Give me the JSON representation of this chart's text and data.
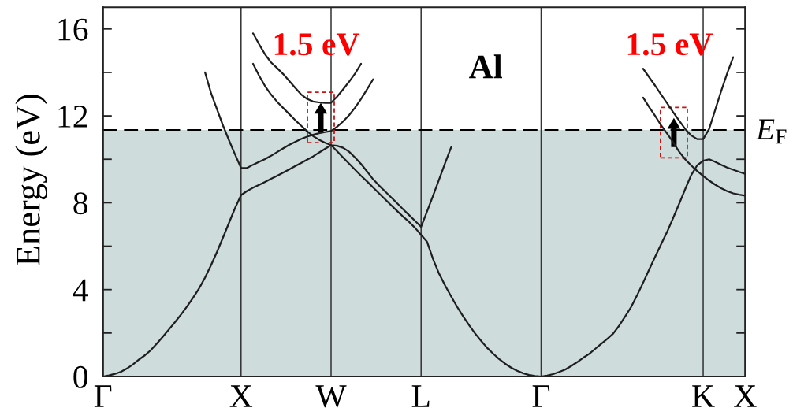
{
  "chart_data": {
    "type": "line",
    "title": "Al",
    "ylabel": "Energy (eV)",
    "categories": [
      "Γ",
      null,
      null,
      null,
      null,
      null,
      null,
      null,
      null,
      null,
      null,
      null,
      null,
      null,
      null,
      null,
      null,
      null,
      null,
      null,
      null,
      null,
      null,
      "X",
      null,
      null,
      null,
      null,
      null,
      null,
      null,
      null,
      null,
      null,
      null,
      null,
      null,
      null,
      "W",
      null,
      null,
      null,
      null,
      null,
      null,
      null,
      null,
      null,
      null,
      null,
      null,
      null,
      null,
      "L",
      null,
      null,
      null,
      null,
      null,
      null,
      null,
      null,
      null,
      null,
      null,
      null,
      null,
      null,
      null,
      null,
      null,
      null,
      null,
      "Γ",
      null,
      null,
      null,
      null,
      null,
      null,
      null,
      null,
      null,
      null,
      null,
      null,
      null,
      null,
      null,
      null,
      null,
      null,
      null,
      null,
      null,
      null,
      null,
      null,
      null,
      null,
      "K",
      null,
      null,
      null,
      null,
      null,
      null,
      "X"
    ],
    "ylim": [
      0,
      17
    ],
    "yticks": [
      0,
      {
        "value": 2,
        "label": null
      },
      4,
      {
        "value": 6,
        "label": null
      },
      8,
      {
        "value": 10,
        "label": null
      },
      12,
      {
        "value": 14,
        "label": null
      },
      16
    ],
    "grid": "x",
    "series": [
      {
        "color": "#1e1e1e",
        "values": [
          0,
          0.05,
          0.12,
          0.22,
          0.37,
          0.56,
          0.78,
          0.98,
          1.22,
          1.52,
          1.84,
          2.17,
          2.5,
          2.85,
          3.22,
          3.62,
          4.05,
          4.55,
          5.12,
          5.74,
          6.4,
          7.08,
          7.75,
          8.35,
          8.54,
          8.69,
          8.82,
          8.96,
          9.1,
          9.24,
          9.38,
          9.53,
          9.68,
          9.83,
          9.98,
          10.13,
          10.31,
          10.48,
          10.65,
          10.37,
          10.08,
          9.8,
          9.52,
          9.24,
          8.98,
          8.7,
          8.43,
          8.16,
          7.89,
          7.62,
          7.36,
          7.12,
          6.84,
          6.52,
          6.2,
          5.4,
          4.73,
          4.19,
          3.69,
          3.21,
          2.77,
          2.36,
          1.98,
          1.64,
          1.32,
          1.05,
          0.8,
          0.59,
          0.41,
          0.26,
          0.15,
          0.07,
          0.02,
          0,
          0.04,
          0.11,
          0.21,
          0.32,
          0.48,
          0.66,
          0.86,
          1.04,
          1.27,
          1.5,
          1.73,
          1.97,
          2.34,
          2.76,
          3.2,
          3.74,
          4.32,
          4.92,
          5.51,
          6.09,
          6.66,
          7.3,
          7.95,
          8.62,
          9.27,
          9.72,
          9.93,
          10.0,
          9.88,
          9.75,
          9.62,
          9.52,
          9.42,
          9.33
        ]
      },
      {
        "color": "#1e1e1e",
        "values": [
          null,
          null,
          null,
          null,
          null,
          null,
          null,
          null,
          null,
          null,
          null,
          null,
          null,
          null,
          null,
          null,
          null,
          null,
          null,
          null,
          null,
          null,
          null,
          null,
          null,
          14.4,
          13.85,
          13.37,
          12.98,
          12.65,
          12.37,
          12.09,
          11.81,
          11.55,
          11.29,
          11.07,
          10.9,
          10.76,
          10.65,
          10.62,
          10.53,
          10.35,
          10.08,
          9.78,
          9.44,
          9.08,
          8.79,
          8.52,
          8.25,
          7.98,
          7.7,
          7.43,
          7.16,
          6.89,
          7.6,
          8.33,
          9.07,
          9.82,
          10.55,
          null,
          null,
          null,
          null,
          null,
          null,
          null,
          null,
          null,
          null,
          null,
          null,
          null,
          null,
          null,
          null,
          null,
          null,
          null,
          null,
          null,
          null,
          null,
          null,
          null,
          null,
          null,
          null,
          null,
          null,
          null,
          null,
          null,
          null,
          null,
          null,
          null,
          null,
          null,
          null,
          null,
          null,
          null,
          null,
          null,
          null,
          null,
          null,
          null
        ]
      },
      {
        "color": "#1e1e1e",
        "values": [
          null,
          null,
          null,
          null,
          null,
          null,
          null,
          null,
          null,
          null,
          null,
          null,
          null,
          null,
          null,
          null,
          null,
          14.0,
          13.05,
          12.3,
          11.55,
          10.87,
          10.22,
          9.6,
          9.6,
          9.75,
          9.88,
          10.01,
          10.16,
          10.33,
          10.5,
          10.66,
          10.8,
          10.93,
          11.04,
          11.13,
          11.2,
          11.25,
          11.3,
          11.5,
          11.74,
          12.03,
          12.38,
          12.78,
          13.22,
          13.68,
          null,
          null,
          null,
          null,
          null,
          null,
          null,
          null,
          null,
          null,
          null,
          null,
          null,
          null,
          null,
          null,
          null,
          null,
          null,
          null,
          null,
          null,
          null,
          null,
          null,
          null,
          null,
          null,
          null,
          null,
          null,
          null,
          null,
          null,
          null,
          null,
          null,
          null,
          null,
          null,
          null,
          null,
          null,
          null,
          null,
          null,
          null,
          null,
          null,
          null,
          null,
          null,
          null,
          null,
          null,
          null,
          null,
          null,
          null,
          null,
          null,
          null
        ]
      },
      {
        "color": "#1e1e1e",
        "values": [
          null,
          null,
          null,
          null,
          null,
          null,
          null,
          null,
          null,
          null,
          null,
          null,
          null,
          null,
          null,
          null,
          null,
          null,
          null,
          null,
          null,
          null,
          null,
          null,
          null,
          15.8,
          15.3,
          14.83,
          14.46,
          14.2,
          13.93,
          13.62,
          13.3,
          12.99,
          12.78,
          12.66,
          12.62,
          12.6,
          12.6,
          12.88,
          13.22,
          13.57,
          13.95,
          14.4,
          null,
          null,
          null,
          null,
          null,
          null,
          null,
          null,
          null,
          null,
          null,
          null,
          null,
          null,
          null,
          null,
          null,
          null,
          null,
          null,
          null,
          null,
          null,
          null,
          null,
          null,
          null,
          null,
          null,
          null,
          null,
          null,
          null,
          null,
          null,
          null,
          null,
          null,
          null,
          null,
          null,
          null,
          null,
          null,
          null,
          null,
          null,
          null,
          null,
          null,
          null,
          null,
          null,
          null,
          null,
          null,
          null,
          null,
          null,
          null,
          null,
          null,
          null,
          null
        ]
      },
      {
        "color": "#1e1e1e",
        "values": [
          null,
          null,
          null,
          null,
          null,
          null,
          null,
          null,
          null,
          null,
          null,
          null,
          null,
          null,
          null,
          null,
          null,
          null,
          null,
          null,
          null,
          null,
          null,
          null,
          null,
          null,
          null,
          null,
          null,
          null,
          null,
          null,
          null,
          null,
          null,
          null,
          null,
          null,
          null,
          null,
          null,
          null,
          null,
          null,
          null,
          null,
          null,
          null,
          null,
          null,
          null,
          null,
          null,
          null,
          null,
          null,
          null,
          null,
          null,
          null,
          null,
          null,
          null,
          null,
          null,
          null,
          null,
          null,
          null,
          null,
          null,
          null,
          null,
          null,
          null,
          null,
          null,
          null,
          null,
          null,
          null,
          null,
          null,
          null,
          null,
          null,
          null,
          null,
          null,
          null,
          14.17,
          13.78,
          13.39,
          12.98,
          12.58,
          12.17,
          11.78,
          11.4,
          11.1,
          10.93,
          10.93,
          11.4,
          12.27,
          13.14,
          13.96,
          14.7,
          null,
          null
        ]
      },
      {
        "color": "#1e1e1e",
        "values": [
          null,
          null,
          null,
          null,
          null,
          null,
          null,
          null,
          null,
          null,
          null,
          null,
          null,
          null,
          null,
          null,
          null,
          null,
          null,
          null,
          null,
          null,
          null,
          null,
          null,
          null,
          null,
          null,
          null,
          null,
          null,
          null,
          null,
          null,
          null,
          null,
          null,
          null,
          null,
          null,
          null,
          null,
          null,
          null,
          null,
          null,
          null,
          null,
          null,
          null,
          null,
          null,
          null,
          null,
          null,
          null,
          null,
          null,
          null,
          null,
          null,
          null,
          null,
          null,
          null,
          null,
          null,
          null,
          null,
          null,
          null,
          null,
          null,
          null,
          null,
          null,
          null,
          null,
          null,
          null,
          null,
          null,
          null,
          null,
          null,
          null,
          null,
          null,
          null,
          null,
          12.84,
          12.41,
          12.0,
          11.56,
          11.18,
          10.78,
          10.35,
          10.0,
          9.72,
          9.46,
          9.23,
          9.02,
          8.83,
          8.67,
          8.53,
          8.43,
          8.37,
          8.33
        ]
      }
    ],
    "ref_lines": [
      {
        "axis": "y",
        "value": 11.35,
        "label": "E$_{F}$",
        "color": "#000000",
        "line_style": "dashed"
      }
    ],
    "bands": [
      {
        "axis": "y",
        "from": 0,
        "to": 11.35,
        "color": "#cfdcdc"
      }
    ],
    "annotations": [
      {
        "text": "1.5 eV",
        "x": "W",
        "y": 12.6
      },
      "1.5 eV"
    ]
  }
}
